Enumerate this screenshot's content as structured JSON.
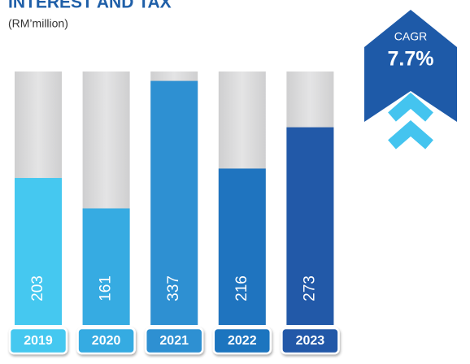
{
  "chart_data": {
    "type": "bar",
    "title": "INTEREST AND TAX",
    "subtitle": "(RM’million)",
    "categories": [
      "2019",
      "2020",
      "2021",
      "2022",
      "2023"
    ],
    "values": [
      203,
      161,
      337,
      216,
      273
    ],
    "colors": [
      "#45c8f0",
      "#36abe2",
      "#2e90d2",
      "#1f74bf",
      "#2259a8"
    ],
    "ylim": [
      0,
      350
    ],
    "annotations": {
      "cagr_label": "CAGR",
      "cagr_value": "7.7%"
    }
  }
}
